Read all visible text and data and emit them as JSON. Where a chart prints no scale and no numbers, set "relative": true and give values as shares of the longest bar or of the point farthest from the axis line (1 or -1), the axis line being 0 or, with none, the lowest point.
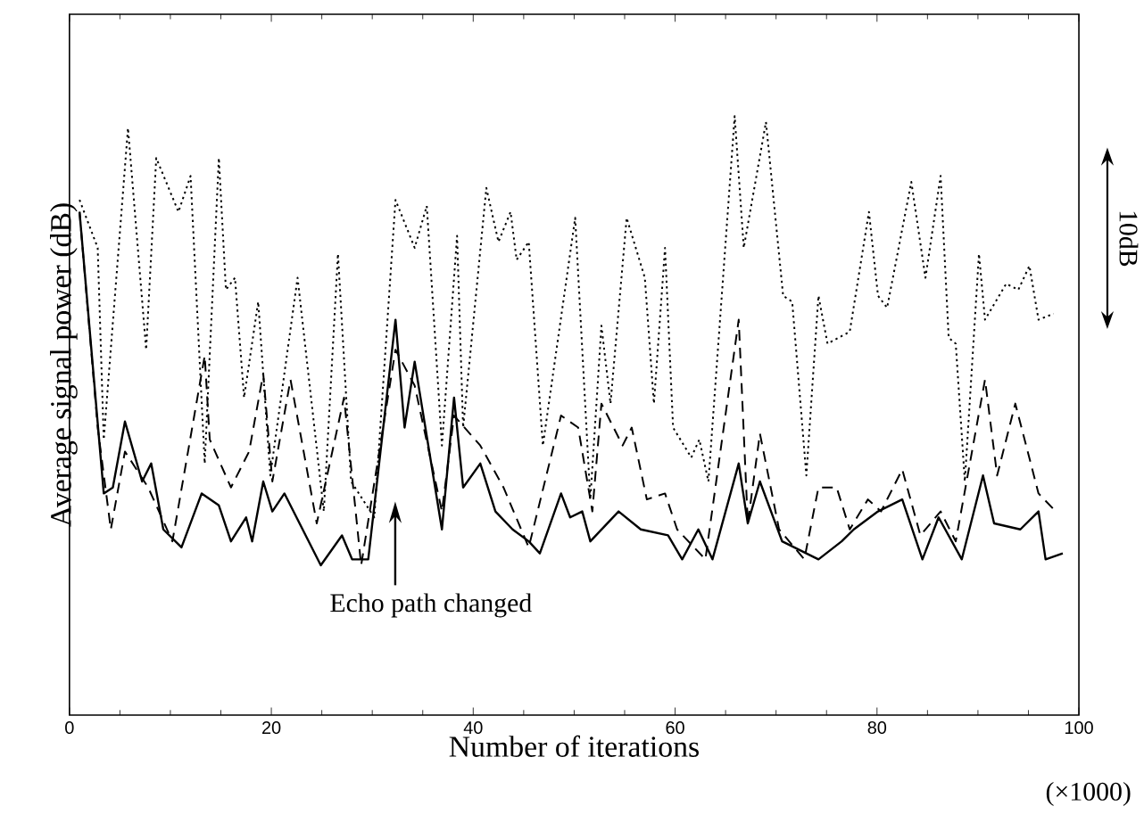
{
  "chart_data": {
    "type": "line",
    "relative": true,
    "xlabel": "Number of iterations",
    "ylabel": "Average signal power (dB)",
    "xlim": [
      0,
      100
    ],
    "xticks": [
      0,
      20,
      40,
      60,
      80,
      100
    ],
    "marker": "none",
    "annotations": [
      "Echo path changed",
      "(×1000)",
      "10dB"
    ],
    "series": [
      {
        "color": "#000000",
        "line_style": "solid",
        "x": [
          1.0,
          3.4,
          4.3,
          5.5,
          7.2,
          8.1,
          9.3,
          11.1,
          13.1,
          14.8,
          16.0,
          17.5,
          18.1,
          19.2,
          20.1,
          21.3,
          24.9,
          27.0,
          28.0,
          29.6,
          32.3,
          33.2,
          34.2,
          36.9,
          38.1,
          39.0,
          40.7,
          42.2,
          43.9,
          45.5,
          46.6,
          48.7,
          49.6,
          50.8,
          51.6,
          54.4,
          56.6,
          59.3,
          60.7,
          62.3,
          63.7,
          66.3,
          67.2,
          68.4,
          70.6,
          74.2,
          76.5,
          77.7,
          80.1,
          82.5,
          84.5,
          86.1,
          88.4,
          90.5,
          91.6,
          94.2,
          96.0,
          96.7,
          98.4
        ],
        "values": [
          0.84,
          0.37,
          0.38,
          0.49,
          0.39,
          0.42,
          0.31,
          0.28,
          0.37,
          0.35,
          0.29,
          0.33,
          0.29,
          0.39,
          0.34,
          0.37,
          0.25,
          0.3,
          0.26,
          0.26,
          0.66,
          0.48,
          0.59,
          0.31,
          0.53,
          0.38,
          0.42,
          0.34,
          0.31,
          0.29,
          0.27,
          0.37,
          0.33,
          0.34,
          0.29,
          0.34,
          0.31,
          0.3,
          0.26,
          0.31,
          0.26,
          0.42,
          0.32,
          0.39,
          0.29,
          0.26,
          0.29,
          0.31,
          0.34,
          0.36,
          0.26,
          0.33,
          0.26,
          0.4,
          0.32,
          0.31,
          0.34,
          0.26,
          0.27
        ]
      },
      {
        "color": "#000000",
        "line_style": "dashed",
        "x": [
          1.0,
          2.8,
          4.1,
          5.5,
          7.8,
          10.2,
          13.4,
          13.9,
          16.0,
          17.8,
          19.2,
          20.1,
          21.9,
          24.5,
          27.2,
          28.9,
          32.3,
          34.2,
          36.9,
          38.1,
          40.7,
          43.0,
          45.5,
          48.7,
          50.4,
          51.8,
          52.7,
          54.8,
          55.7,
          57.2,
          59.0,
          60.2,
          63.0,
          66.3,
          67.2,
          68.4,
          70.3,
          72.8,
          74.2,
          76.0,
          77.3,
          79.1,
          80.4,
          82.5,
          84.3,
          86.3,
          87.8,
          90.7,
          91.9,
          93.7,
          96.0,
          97.7
        ],
        "values": [
          0.84,
          0.48,
          0.31,
          0.44,
          0.38,
          0.29,
          0.6,
          0.46,
          0.38,
          0.44,
          0.57,
          0.39,
          0.56,
          0.32,
          0.53,
          0.25,
          0.61,
          0.55,
          0.34,
          0.5,
          0.45,
          0.38,
          0.28,
          0.5,
          0.48,
          0.34,
          0.52,
          0.45,
          0.48,
          0.36,
          0.37,
          0.31,
          0.26,
          0.66,
          0.32,
          0.47,
          0.31,
          0.26,
          0.38,
          0.38,
          0.31,
          0.36,
          0.34,
          0.41,
          0.3,
          0.34,
          0.29,
          0.56,
          0.4,
          0.52,
          0.37,
          0.34
        ]
      },
      {
        "color": "#000000",
        "line_style": "dotted",
        "x": [
          1.0,
          2.8,
          3.4,
          5.8,
          7.6,
          8.6,
          10.8,
          12.0,
          13.4,
          14.8,
          15.5,
          16.4,
          17.3,
          18.7,
          19.9,
          22.6,
          25.2,
          26.6,
          27.9,
          30.2,
          32.3,
          34.2,
          35.4,
          36.9,
          38.4,
          39.0,
          41.3,
          42.5,
          43.7,
          44.3,
          45.5,
          46.9,
          50.1,
          51.6,
          52.7,
          53.6,
          55.2,
          57.0,
          57.9,
          59.0,
          59.8,
          61.6,
          62.4,
          63.3,
          65.9,
          66.8,
          69.0,
          70.7,
          71.6,
          73.0,
          74.2,
          75.1,
          77.3,
          79.2,
          80.1,
          81.0,
          83.4,
          84.8,
          86.3,
          87.1,
          87.8,
          88.7,
          90.1,
          90.7,
          92.8,
          94.0,
          95.1,
          96.0,
          97.5
        ],
        "values": [
          0.86,
          0.78,
          0.46,
          0.98,
          0.61,
          0.93,
          0.84,
          0.9,
          0.42,
          0.93,
          0.71,
          0.73,
          0.53,
          0.69,
          0.4,
          0.73,
          0.34,
          0.77,
          0.39,
          0.33,
          0.86,
          0.78,
          0.85,
          0.45,
          0.8,
          0.48,
          0.88,
          0.79,
          0.84,
          0.76,
          0.79,
          0.45,
          0.83,
          0.36,
          0.65,
          0.52,
          0.83,
          0.73,
          0.52,
          0.78,
          0.48,
          0.43,
          0.46,
          0.39,
          1,
          0.78,
          0.99,
          0.7,
          0.69,
          0.4,
          0.7,
          0.62,
          0.64,
          0.84,
          0.7,
          0.68,
          0.89,
          0.73,
          0.9,
          0.63,
          0.62,
          0.39,
          0.77,
          0.66,
          0.72,
          0.71,
          0.75,
          0.66,
          0.67
        ]
      }
    ]
  }
}
